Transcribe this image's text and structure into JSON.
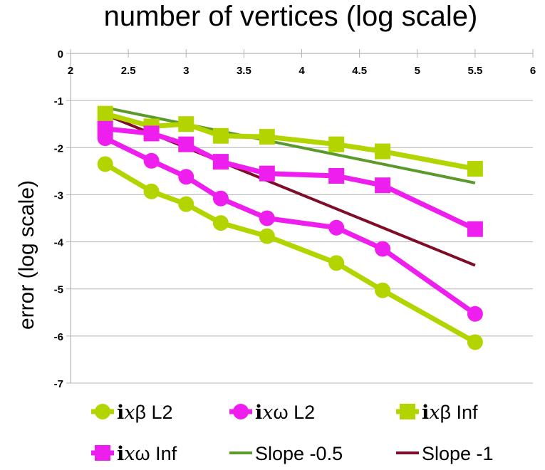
{
  "chart_data": {
    "type": "line",
    "title": "number of vertices (log scale)",
    "xlabel": "",
    "ylabel": "error (log scale)",
    "xlim": [
      2,
      6
    ],
    "ylim": [
      -7,
      0
    ],
    "x_axis_position": "top",
    "grid": "horizontal",
    "xticks": [
      {
        "value": 2,
        "label": "2"
      },
      {
        "value": 2.5,
        "label": "2.5"
      },
      {
        "value": 3,
        "label": "3"
      },
      {
        "value": 3.5,
        "label": "3.5"
      },
      {
        "value": 4,
        "label": "4"
      },
      {
        "value": 4.5,
        "label": "4.5"
      },
      {
        "value": 5,
        "label": "5"
      },
      {
        "value": 5.5,
        "label": "5.5"
      },
      {
        "value": 6,
        "label": "6"
      }
    ],
    "yticks": [
      {
        "value": 0,
        "label": "0"
      },
      {
        "value": -1,
        "label": "-1"
      },
      {
        "value": -2,
        "label": "-2"
      },
      {
        "value": -3,
        "label": "-3"
      },
      {
        "value": -4,
        "label": "-4"
      },
      {
        "value": -5,
        "label": "-5"
      },
      {
        "value": -6,
        "label": "-6"
      },
      {
        "value": -7,
        "label": "-7"
      }
    ],
    "series": [
      {
        "key": "ixb-l2",
        "name_bold": "i",
        "name_italic": "x",
        "name_rest": "β L2",
        "color": "#b4d400",
        "marker": "circle",
        "line_width": 7,
        "x": [
          2.3,
          2.7,
          3.0,
          3.3,
          3.7,
          4.3,
          4.7,
          5.5
        ],
        "y": [
          -2.35,
          -2.93,
          -3.2,
          -3.6,
          -3.88,
          -4.45,
          -5.03,
          -6.13
        ]
      },
      {
        "key": "ixw-l2",
        "name_bold": "i",
        "name_italic": "x",
        "name_rest": "ω L2",
        "color": "#ee1fee",
        "marker": "circle",
        "line_width": 7,
        "x": [
          2.3,
          2.7,
          3.0,
          3.3,
          3.7,
          4.3,
          4.7,
          5.5
        ],
        "y": [
          -1.8,
          -2.28,
          -2.62,
          -3.08,
          -3.5,
          -3.7,
          -4.15,
          -5.53
        ]
      },
      {
        "key": "ixb-inf",
        "name_bold": "i",
        "name_italic": "x",
        "name_rest": "β Inf",
        "color": "#b4d400",
        "marker": "square",
        "line_width": 7,
        "x": [
          2.3,
          2.7,
          3.0,
          3.3,
          3.7,
          4.3,
          4.7,
          5.5
        ],
        "y": [
          -1.28,
          -1.55,
          -1.5,
          -1.75,
          -1.77,
          -1.93,
          -2.08,
          -2.45
        ]
      },
      {
        "key": "ixw-inf",
        "name_bold": "i",
        "name_italic": "x",
        "name_rest": "ω Inf",
        "color": "#ee1fee",
        "marker": "square",
        "line_width": 7,
        "x": [
          2.3,
          2.7,
          3.0,
          3.3,
          3.7,
          4.3,
          4.7,
          5.5
        ],
        "y": [
          -1.6,
          -1.7,
          -1.93,
          -2.3,
          -2.55,
          -2.6,
          -2.8,
          -3.73
        ]
      },
      {
        "key": "slope-05",
        "name_bold": "",
        "name_italic": "",
        "name_rest": "Slope -0.5",
        "color": "#5a9a2b",
        "marker": "none",
        "line_width": 4,
        "x": [
          2.3,
          5.5
        ],
        "y": [
          -1.15,
          -2.75
        ]
      },
      {
        "key": "slope-1",
        "name_bold": "",
        "name_italic": "",
        "name_rest": "Slope -1",
        "color": "#7f0d27",
        "marker": "none",
        "line_width": 4,
        "x": [
          2.3,
          5.5
        ],
        "y": [
          -1.3,
          -4.5
        ]
      }
    ],
    "legend_position": "bottom"
  }
}
